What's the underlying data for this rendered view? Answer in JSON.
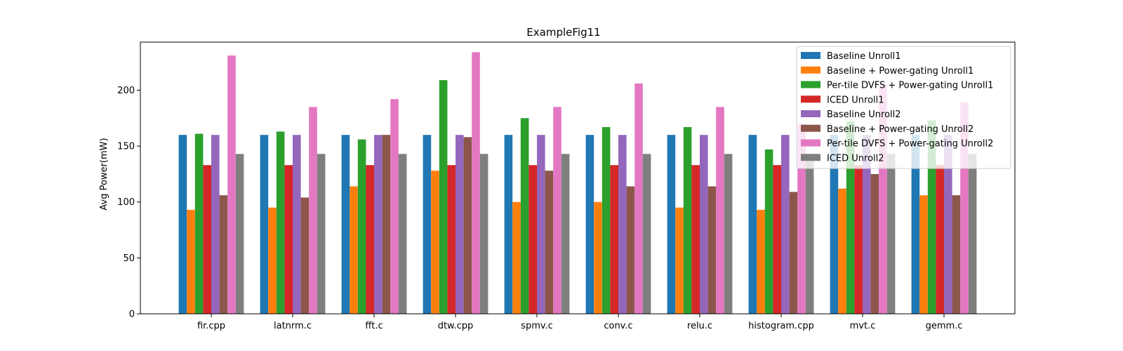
{
  "chart_data": {
    "type": "bar",
    "title": "ExampleFig11",
    "xlabel": "",
    "ylabel": "Avg Power(mW)",
    "ylim": [
      0,
      243
    ],
    "yticks": [
      0,
      50,
      100,
      150,
      200
    ],
    "grid": false,
    "legend_position": "top-right",
    "categories": [
      "fir.cpp",
      "latnrm.c",
      "fft.c",
      "dtw.cpp",
      "spmv.c",
      "conv.c",
      "relu.c",
      "histogram.cpp",
      "mvt.c",
      "gemm.c"
    ],
    "series": [
      {
        "name": "Baseline Unroll1",
        "color": "#1f77b4",
        "values": [
          160,
          160,
          160,
          160,
          160,
          160,
          160,
          160,
          160,
          160
        ]
      },
      {
        "name": "Baseline + Power-gating Unroll1",
        "color": "#ff7f0e",
        "values": [
          93,
          95,
          114,
          128,
          100,
          100,
          95,
          93,
          112,
          106
        ]
      },
      {
        "name": "Per-tile DVFS + Power-gating Unroll1",
        "color": "#2ca02c",
        "values": [
          161,
          163,
          156,
          209,
          175,
          167,
          167,
          147,
          172,
          173
        ]
      },
      {
        "name": "ICED Unroll1",
        "color": "#d62728",
        "values": [
          133,
          133,
          133,
          133,
          133,
          133,
          133,
          133,
          133,
          133
        ]
      },
      {
        "name": "Baseline Unroll2",
        "color": "#9467bd",
        "values": [
          160,
          160,
          160,
          160,
          160,
          160,
          160,
          160,
          160,
          160
        ]
      },
      {
        "name": "Baseline + Power-gating Unroll2",
        "color": "#8c564b",
        "values": [
          106,
          104,
          160,
          158,
          128,
          114,
          114,
          109,
          125,
          106
        ]
      },
      {
        "name": "Per-tile DVFS + Power-gating Unroll2",
        "color": "#e377c2",
        "values": [
          231,
          185,
          192,
          234,
          185,
          206,
          185,
          170,
          205,
          189
        ]
      },
      {
        "name": "ICED Unroll2",
        "color": "#7f7f7f",
        "values": [
          143,
          143,
          143,
          143,
          143,
          143,
          143,
          143,
          143,
          143
        ]
      }
    ]
  }
}
